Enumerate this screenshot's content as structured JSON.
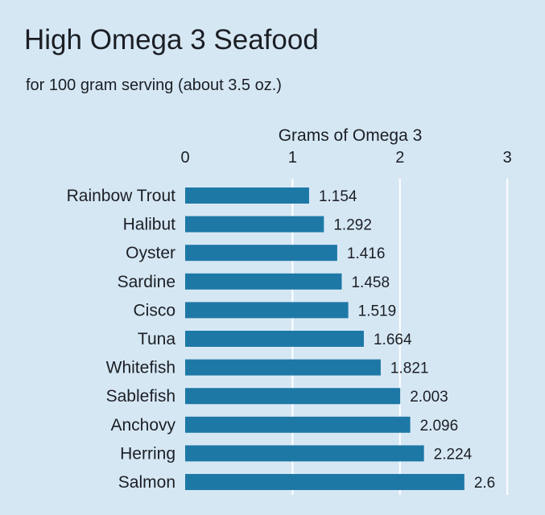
{
  "chart_data": {
    "type": "bar",
    "orientation": "horizontal",
    "title": "High Omega 3 Seafood",
    "subtitle": "for 100 gram serving (about 3.5 oz.)",
    "xlabel": "Grams of Omega 3",
    "xlim": [
      0,
      3
    ],
    "xticks": [
      0,
      1,
      2,
      3
    ],
    "grid": true,
    "categories": [
      "Rainbow Trout",
      "Halibut",
      "Oyster",
      "Sardine",
      "Cisco",
      "Tuna",
      "Whitefish",
      "Sablefish",
      "Anchovy",
      "Herring",
      "Salmon"
    ],
    "values": [
      1.154,
      1.292,
      1.416,
      1.458,
      1.519,
      1.664,
      1.821,
      2.003,
      2.096,
      2.224,
      2.6
    ],
    "value_labels": [
      "1.154",
      "1.292",
      "1.416",
      "1.458",
      "1.519",
      "1.664",
      "1.821",
      "2.003",
      "2.096",
      "2.224",
      "2.6"
    ],
    "bar_color": "#1e78a6",
    "grid_color": "#ffffff",
    "background_color": "#d6e7f4"
  }
}
